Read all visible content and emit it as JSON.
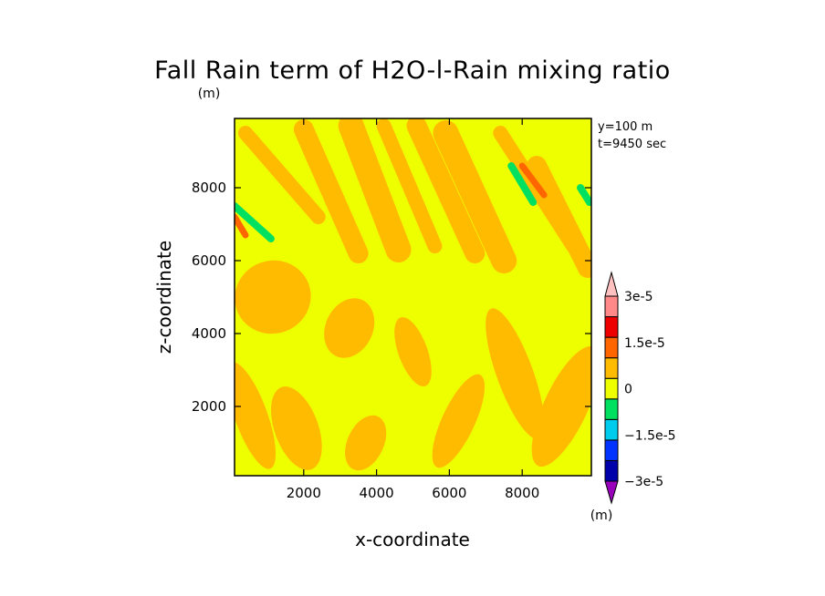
{
  "chart_data": {
    "type": "heatmap",
    "title": "Fall Rain term of H2O-l-Rain mixing ratio",
    "title_unit": "(m)",
    "xlabel": "x-coordinate",
    "ylabel": "z-coordinate",
    "xlim": [
      100,
      9900
    ],
    "ylim": [
      100,
      9900
    ],
    "x_ticks": [
      2000,
      4000,
      6000,
      8000
    ],
    "y_ticks": [
      2000,
      4000,
      6000,
      8000
    ],
    "info_lines": [
      "y=100 m",
      "t=9450 sec"
    ],
    "colorbar": {
      "unit": "(m)",
      "levels": [
        -3e-05,
        -2.25e-05,
        -1.5e-05,
        -7.5e-06,
        0,
        7.5e-06,
        1.5e-05,
        2.25e-05,
        3e-05
      ],
      "colors": [
        "#9900bb",
        "#0000aa",
        "#0033ff",
        "#00ccee",
        "#00e060",
        "#eeff00",
        "#ffbb00",
        "#ff6600",
        "#ee0000",
        "#ff8888",
        "#ffc0c0"
      ],
      "labels": [
        {
          "value": 3e-05,
          "text": "3e-5"
        },
        {
          "value": 1.5e-05,
          "text": "1.5e-5"
        },
        {
          "value": 0,
          "text": "0"
        },
        {
          "value": -1.5e-05,
          "text": "−1.5e-5"
        },
        {
          "value": -3e-05,
          "text": "−3e-5"
        }
      ]
    },
    "field": {
      "background_level": "0 to 7.5e-6",
      "dominant_colors": {
        "background": "#eeff00",
        "positive": "#ffbb00",
        "strong_positive": "#ff6600",
        "negative": "#00e060"
      },
      "diagonal_streaks": [
        {
          "x": [
            400,
            2400
          ],
          "z": [
            9500,
            7200
          ]
        },
        {
          "x": [
            2000,
            3500
          ],
          "z": [
            9600,
            6200
          ]
        },
        {
          "x": [
            3300,
            4600
          ],
          "z": [
            9700,
            6300
          ]
        },
        {
          "x": [
            4200,
            5600
          ],
          "z": [
            9700,
            6400
          ]
        },
        {
          "x": [
            5100,
            6700
          ],
          "z": [
            9700,
            6200
          ]
        },
        {
          "x": [
            5900,
            7500
          ],
          "z": [
            9500,
            6000
          ]
        },
        {
          "x": [
            7400,
            9400
          ],
          "z": [
            9500,
            6400
          ]
        },
        {
          "x": [
            8400,
            9800
          ],
          "z": [
            8600,
            5800
          ]
        }
      ],
      "negative_patches": [
        {
          "x": [
            100,
            1100
          ],
          "z": [
            7500,
            6600
          ]
        },
        {
          "x": [
            7700,
            8300
          ],
          "z": [
            8600,
            7600
          ]
        },
        {
          "x": [
            9600,
            9850
          ],
          "z": [
            8000,
            7600
          ]
        }
      ],
      "strong_positive_patches": [
        {
          "x": [
            8000,
            8600
          ],
          "z": [
            8600,
            7800
          ]
        },
        {
          "x": [
            100,
            400
          ],
          "z": [
            7200,
            6700
          ]
        }
      ],
      "lower_patches": [
        {
          "x": [
            100,
            2200
          ],
          "z": [
            6000,
            4000
          ]
        },
        {
          "x": [
            2600,
            3900
          ],
          "z": [
            5000,
            3300
          ]
        },
        {
          "x": [
            4600,
            5400
          ],
          "z": [
            4500,
            2500
          ]
        },
        {
          "x": [
            5800,
            6700
          ],
          "z": [
            3000,
            200
          ]
        },
        {
          "x": [
            7300,
            8300
          ],
          "z": [
            4800,
            1000
          ]
        },
        {
          "x": [
            8600,
            9800
          ],
          "z": [
            3800,
            200
          ]
        },
        {
          "x": [
            1200,
            2400
          ],
          "z": [
            2600,
            200
          ]
        },
        {
          "x": [
            3200,
            4200
          ],
          "z": [
            1800,
            200
          ]
        },
        {
          "x": [
            100,
            1000
          ],
          "z": [
            3300,
            200
          ]
        }
      ]
    }
  }
}
